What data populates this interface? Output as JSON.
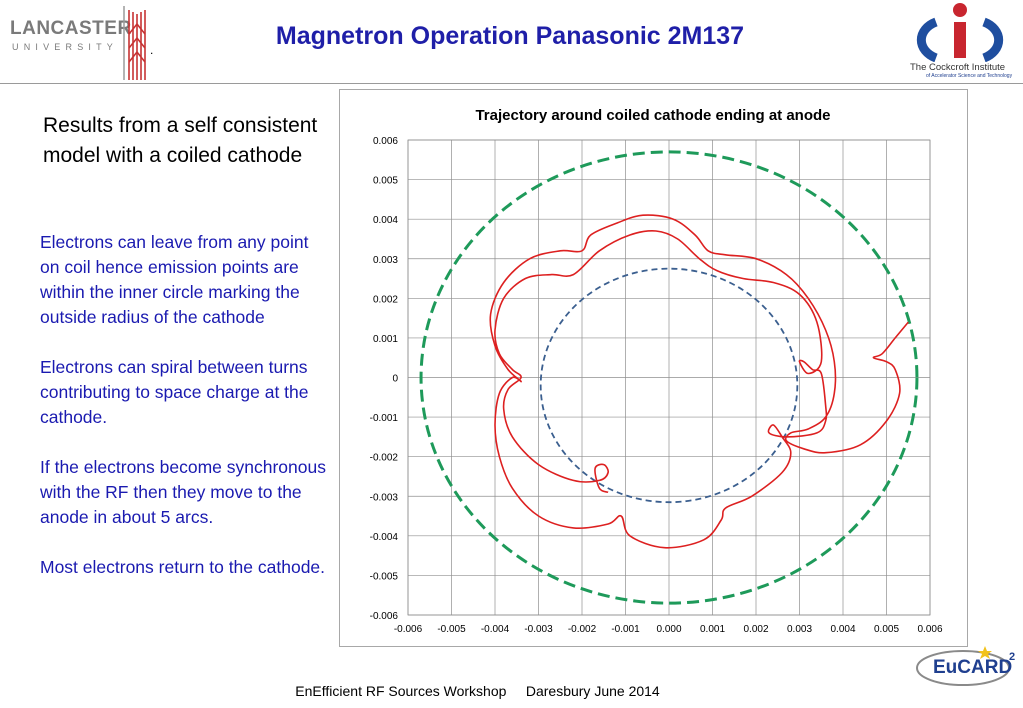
{
  "header": {
    "title": "Magnetron Operation Panasonic 2M137",
    "lancaster_logo": {
      "name": "LANCASTER",
      "sub": "UNIVERSITY",
      "dot": "."
    },
    "cockcroft_logo": {
      "name": "The Cockcroft Institute",
      "sub": "of Accelerator Science and Technology"
    }
  },
  "left_panel": {
    "intro": "Results from a self consistent model with a coiled cathode",
    "paragraphs": [
      "Electrons can leave from any point on coil hence emission points are within the inner circle marking the outside radius of the cathode",
      "Electrons can spiral between turns contributing to space charge at the cathode.",
      "If the electrons become synchronous with the RF then they move to the anode in about 5 arcs.",
      "Most electrons return to the cathode."
    ]
  },
  "chart_data": {
    "type": "scatter",
    "title": "Trajectory around coiled cathode ending at anode",
    "xlabel": "",
    "ylabel": "",
    "xlim": [
      -0.006,
      0.006
    ],
    "ylim": [
      -0.006,
      0.006
    ],
    "x_ticks": [
      "-0.006",
      "-0.005",
      "-0.004",
      "-0.003",
      "-0.002",
      "-0.001",
      "0.000",
      "0.001",
      "0.002",
      "0.003",
      "0.004",
      "0.005",
      "0.006"
    ],
    "y_ticks": [
      "0.006",
      "0.005",
      "0.004",
      "0.003",
      "0.002",
      "0.001",
      "0",
      "-0.001",
      "-0.002",
      "-0.003",
      "-0.004",
      "-0.005",
      "-0.006"
    ],
    "grid": true,
    "series": [
      {
        "kind": "circle",
        "style": "dashed",
        "color": "#1e9a5a",
        "center": [
          0.0,
          0.0
        ],
        "radius": 0.0057
      },
      {
        "kind": "circle",
        "style": "dashed",
        "color": "#3b5f8f",
        "center": [
          0.0,
          -0.0002
        ],
        "radius": 0.00295
      },
      {
        "kind": "trajectory",
        "style": "solid",
        "color": "#dd2020",
        "points": [
          [
            -0.0014,
            -0.0029
          ],
          [
            -0.0016,
            -0.0028
          ],
          [
            -0.0017,
            -0.0023
          ],
          [
            -0.0015,
            -0.0022
          ],
          [
            -0.0014,
            -0.0024
          ],
          [
            -0.0016,
            -0.0026
          ],
          [
            -0.0022,
            -0.0026
          ],
          [
            -0.003,
            -0.0022
          ],
          [
            -0.0036,
            -0.0015
          ],
          [
            -0.0038,
            -0.0008
          ],
          [
            -0.0037,
            -0.0003
          ],
          [
            -0.0034,
            0.0
          ],
          [
            -0.0036,
            0.0002
          ],
          [
            -0.0039,
            0.0006
          ],
          [
            -0.004,
            0.0012
          ],
          [
            -0.0038,
            0.002
          ],
          [
            -0.0033,
            0.0025
          ],
          [
            -0.0027,
            0.0026
          ],
          [
            -0.0022,
            0.0026
          ],
          [
            -0.0016,
            0.0032
          ],
          [
            -0.0009,
            0.0036
          ],
          [
            -0.0003,
            0.0037
          ],
          [
            0.0002,
            0.0035
          ],
          [
            0.0007,
            0.003
          ],
          [
            0.0011,
            0.0027
          ],
          [
            0.0017,
            0.0025
          ],
          [
            0.0024,
            0.0024
          ],
          [
            0.003,
            0.0021
          ],
          [
            0.0034,
            0.0014
          ],
          [
            0.0035,
            0.0004
          ],
          [
            0.0032,
            0.0001
          ],
          [
            0.003,
            0.0004
          ],
          [
            0.0031,
            0.0004
          ],
          [
            0.0033,
            0.0002
          ],
          [
            0.0035,
            0.0001
          ],
          [
            0.0036,
            -0.0007
          ],
          [
            0.0036,
            -0.0011
          ],
          [
            0.0034,
            -0.0014
          ],
          [
            0.0027,
            -0.0015
          ],
          [
            0.0023,
            -0.0014
          ],
          [
            0.0024,
            -0.0012
          ],
          [
            0.0026,
            -0.0015
          ],
          [
            0.0028,
            -0.0019
          ],
          [
            0.0026,
            -0.0024
          ],
          [
            0.0019,
            -0.003
          ],
          [
            0.0013,
            -0.0033
          ],
          [
            0.0012,
            -0.0036
          ],
          [
            0.0008,
            -0.0041
          ],
          [
            -0.0001,
            -0.0043
          ],
          [
            -0.0009,
            -0.004
          ],
          [
            -0.0011,
            -0.0035
          ],
          [
            -0.0014,
            -0.0037
          ],
          [
            -0.0022,
            -0.0038
          ],
          [
            -0.003,
            -0.0035
          ],
          [
            -0.0036,
            -0.0028
          ],
          [
            -0.0039,
            -0.002
          ],
          [
            -0.004,
            -0.0012
          ],
          [
            -0.0039,
            -0.0004
          ],
          [
            -0.0036,
            0.0
          ],
          [
            -0.0034,
            -0.0001
          ],
          [
            -0.0037,
            0.0002
          ],
          [
            -0.004,
            0.0008
          ],
          [
            -0.0041,
            0.0016
          ],
          [
            -0.0038,
            0.0024
          ],
          [
            -0.0032,
            0.003
          ],
          [
            -0.0025,
            0.0032
          ],
          [
            -0.002,
            0.0032
          ],
          [
            -0.0018,
            0.0036
          ],
          [
            -0.0012,
            0.0039
          ],
          [
            -0.0006,
            0.0041
          ],
          [
            0.0001,
            0.004
          ],
          [
            0.0006,
            0.0036
          ],
          [
            0.0009,
            0.0032
          ],
          [
            0.0013,
            0.0031
          ],
          [
            0.002,
            0.003
          ],
          [
            0.0027,
            0.0026
          ],
          [
            0.0032,
            0.002
          ],
          [
            0.0036,
            0.0012
          ],
          [
            0.0038,
            0.0004
          ],
          [
            0.0038,
            -0.0004
          ],
          [
            0.0036,
            -0.001
          ],
          [
            0.0032,
            -0.0013
          ],
          [
            0.0028,
            -0.0014
          ],
          [
            0.0027,
            -0.0016
          ],
          [
            0.0031,
            -0.0018
          ],
          [
            0.0036,
            -0.0019
          ],
          [
            0.0044,
            -0.0017
          ],
          [
            0.005,
            -0.0011
          ],
          [
            0.0053,
            -0.0004
          ],
          [
            0.0052,
            0.0002
          ],
          [
            0.005,
            0.0004
          ],
          [
            0.0047,
            0.0005
          ],
          [
            0.0049,
            0.0006
          ],
          [
            0.0052,
            0.001
          ],
          [
            0.0055,
            0.0014
          ]
        ]
      }
    ]
  },
  "footer": {
    "text": "EnEfficient RF Sources Workshop     Daresbury June 2014"
  },
  "eucard_logo": {
    "name": "EuCARD",
    "sup": "2"
  }
}
